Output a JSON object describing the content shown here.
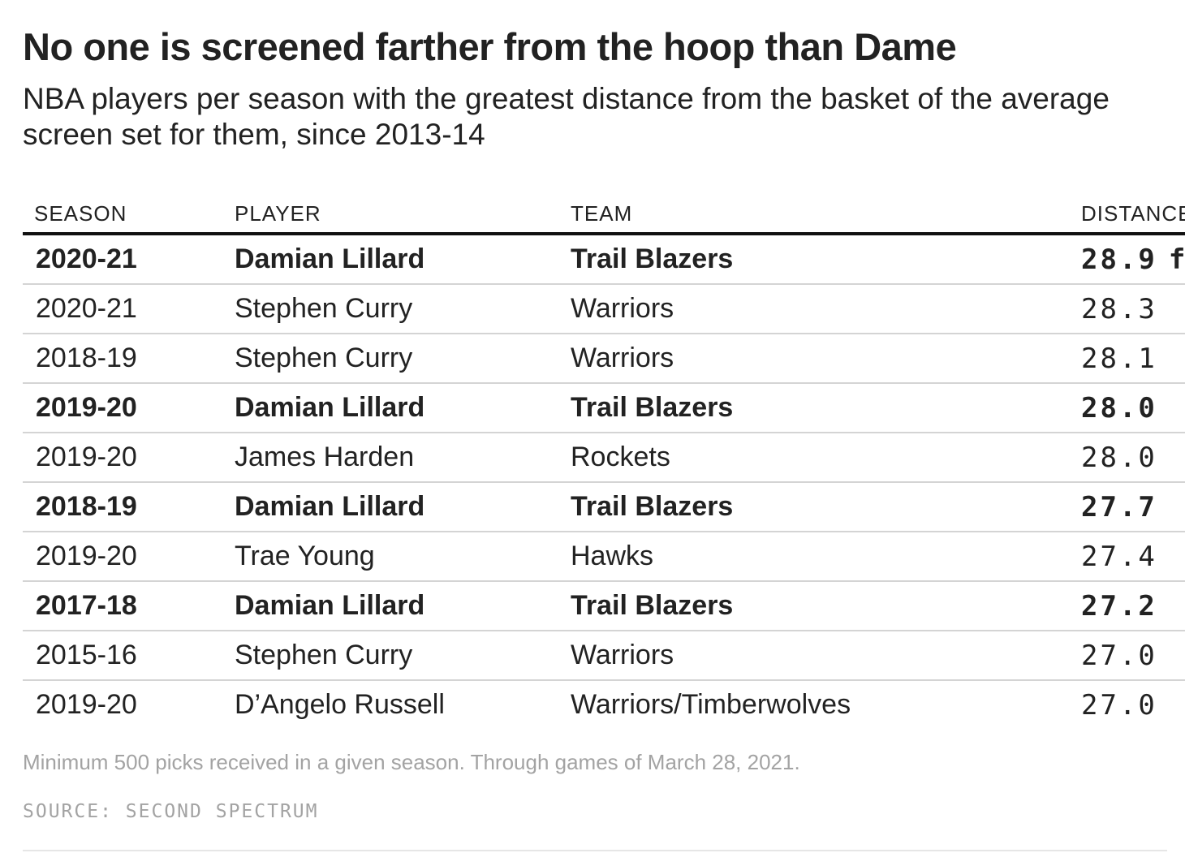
{
  "title": "No one is screened farther from the hoop than Dame",
  "subtitle": "NBA players per season with the greatest distance from the basket of the average screen set for them, since 2013-14",
  "note": "Minimum 500 picks received in a given season. Through games of March 28, 2021.",
  "source": {
    "label": "SOURCE:",
    "value": "SECOND SPECTRUM"
  },
  "colors": {
    "text": "#222222",
    "muted": "#a3a3a3",
    "header_rule": "#111111",
    "row_rule": "#d4d4d4"
  },
  "chart_data": {
    "type": "table",
    "title": "No one is screened farther from the hoop than Dame",
    "subtitle": "NBA players per season with the greatest distance from the basket of the average screen set for them, since 2013-14",
    "columns": [
      "SEASON",
      "PLAYER",
      "TEAM",
      "DISTANCE"
    ],
    "unit": "ft",
    "rows": [
      {
        "season": "2020-21",
        "player": "Damian Lillard",
        "team": "Trail Blazers",
        "distance": "28.9",
        "highlight": true
      },
      {
        "season": "2020-21",
        "player": "Stephen Curry",
        "team": "Warriors",
        "distance": "28.3",
        "highlight": false
      },
      {
        "season": "2018-19",
        "player": "Stephen Curry",
        "team": "Warriors",
        "distance": "28.1",
        "highlight": false
      },
      {
        "season": "2019-20",
        "player": "Damian Lillard",
        "team": "Trail Blazers",
        "distance": "28.0",
        "highlight": true
      },
      {
        "season": "2019-20",
        "player": "James Harden",
        "team": "Rockets",
        "distance": "28.0",
        "highlight": false
      },
      {
        "season": "2018-19",
        "player": "Damian Lillard",
        "team": "Trail Blazers",
        "distance": "27.7",
        "highlight": true
      },
      {
        "season": "2019-20",
        "player": "Trae Young",
        "team": "Hawks",
        "distance": "27.4",
        "highlight": false
      },
      {
        "season": "2017-18",
        "player": "Damian Lillard",
        "team": "Trail Blazers",
        "distance": "27.2",
        "highlight": true
      },
      {
        "season": "2015-16",
        "player": "Stephen Curry",
        "team": "Warriors",
        "distance": "27.0",
        "highlight": false
      },
      {
        "season": "2019-20",
        "player": "D’Angelo Russell",
        "team": "Warriors/Timberwolves",
        "distance": "27.0",
        "highlight": false
      }
    ]
  }
}
